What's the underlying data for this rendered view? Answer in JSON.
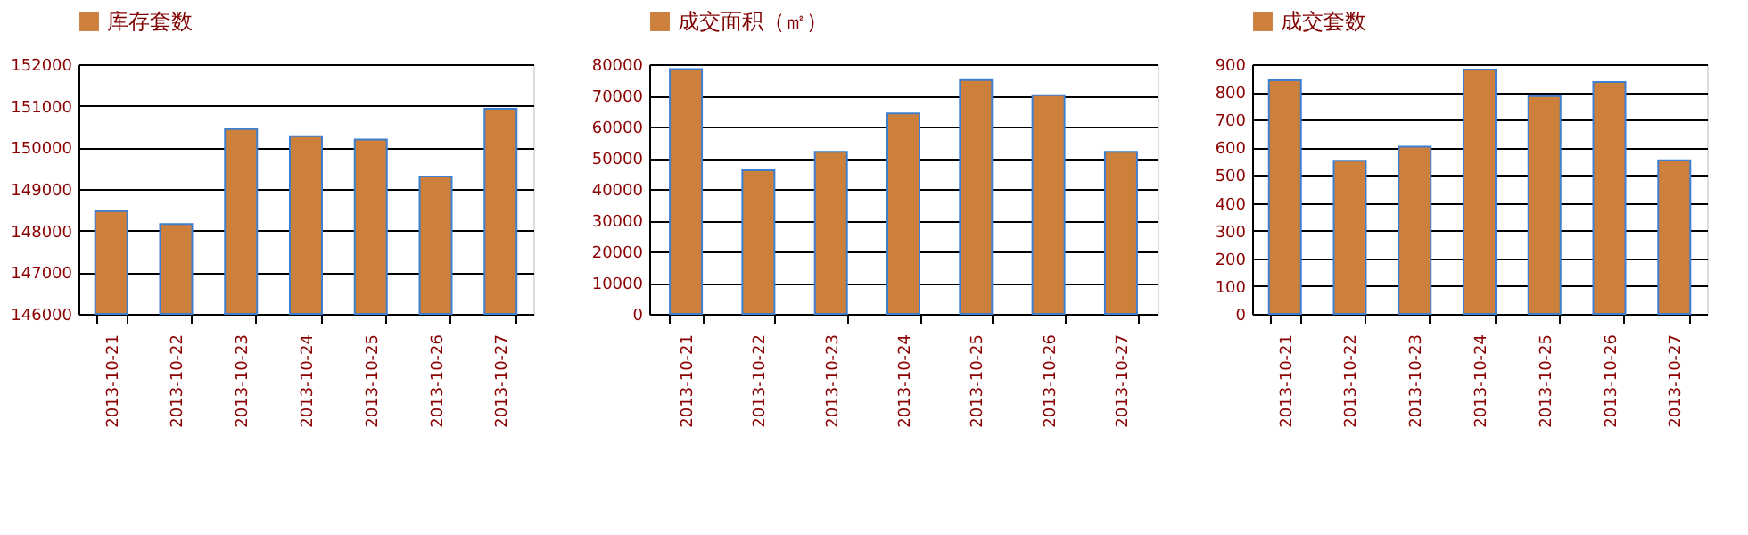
{
  "chart_data": [
    {
      "type": "bar",
      "categories": [
        "2013-10-21",
        "2013-10-22",
        "2013-10-23",
        "2013-10-24",
        "2013-10-25",
        "2013-10-26",
        "2013-10-27"
      ],
      "series": [
        {
          "name": "库存套数",
          "color": "#cd7f3c",
          "values": [
            148470,
            148160,
            150440,
            150270,
            150190,
            149300,
            150930
          ]
        }
      ],
      "ylim": [
        146000,
        152000
      ],
      "yticks": [
        146000,
        147000,
        148000,
        149000,
        150000,
        151000,
        152000
      ],
      "grid": "y",
      "legend": "top"
    },
    {
      "type": "bar",
      "categories": [
        "2013-10-21",
        "2013-10-22",
        "2013-10-23",
        "2013-10-24",
        "2013-10-25",
        "2013-10-26",
        "2013-10-27"
      ],
      "series": [
        {
          "name": "成交面积（㎡）",
          "color": "#cd7f3c",
          "values": [
            78400,
            46000,
            51900,
            64200,
            74900,
            70100,
            51900
          ]
        }
      ],
      "ylim": [
        0,
        80000
      ],
      "yticks": [
        0,
        10000,
        20000,
        30000,
        40000,
        50000,
        60000,
        70000,
        80000
      ],
      "grid": "y",
      "legend": "top"
    },
    {
      "type": "bar",
      "categories": [
        "2013-10-21",
        "2013-10-22",
        "2013-10-23",
        "2013-10-24",
        "2013-10-25",
        "2013-10-26",
        "2013-10-27"
      ],
      "series": [
        {
          "name": "成交套数",
          "color": "#cd7f3c",
          "values": [
            842,
            552,
            603,
            881,
            785,
            836,
            554
          ]
        }
      ],
      "ylim": [
        0,
        900
      ],
      "yticks": [
        0,
        100,
        200,
        300,
        400,
        500,
        600,
        700,
        800,
        900
      ],
      "grid": "y",
      "legend": "top"
    }
  ]
}
